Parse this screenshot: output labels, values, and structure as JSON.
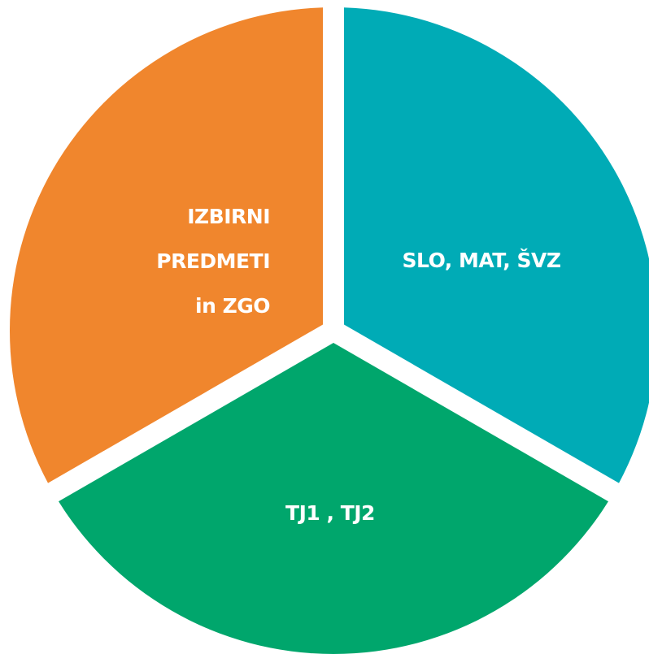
{
  "segments": [
    {
      "label_lines": [
        "IZBIRNI",
        "PREDMETI",
        "in ZGO"
      ],
      "color": "#f0862d"
    },
    {
      "label": "SLO, MAT, ŠVZ",
      "color": "#00abb6"
    },
    {
      "label": "TJ1 , TJ2",
      "color": "#00a66c"
    }
  ]
}
